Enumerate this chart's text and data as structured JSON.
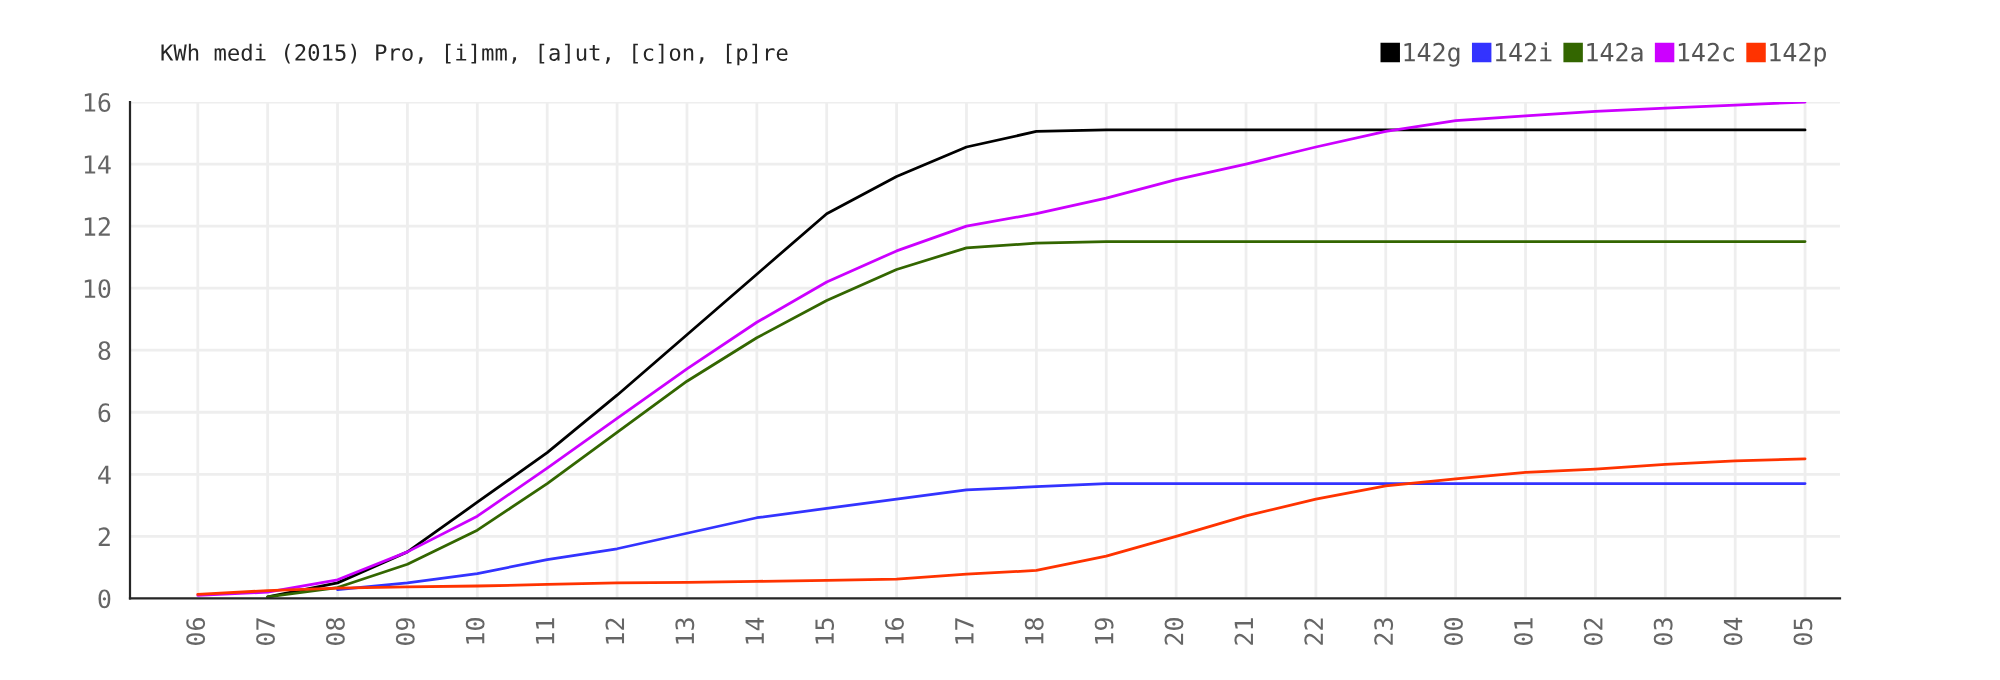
{
  "chart_data": {
    "type": "line",
    "title": "KWh medi (2015) Pro, [i]mm, [a]ut, [c]on, [p]re",
    "categories": [
      "06",
      "07",
      "08",
      "09",
      "10",
      "11",
      "12",
      "13",
      "14",
      "15",
      "16",
      "17",
      "18",
      "19",
      "20",
      "21",
      "22",
      "23",
      "00",
      "01",
      "02",
      "03",
      "04",
      "05"
    ],
    "ylim": [
      0,
      16
    ],
    "yticks": [
      0,
      2,
      4,
      6,
      8,
      10,
      12,
      14,
      16
    ],
    "grid": true,
    "legend": "top right",
    "marker": "none",
    "line_style": "solid",
    "series": [
      {
        "name": "142g",
        "color": "#000000",
        "values": [
          null,
          0.05,
          0.5,
          1.5,
          3.1,
          4.7,
          6.55,
          8.5,
          10.45,
          12.4,
          13.6,
          14.55,
          15.05,
          15.1,
          15.1,
          15.1,
          15.1,
          15.1,
          15.1,
          15.1,
          15.1,
          15.1,
          15.1,
          15.1
        ]
      },
      {
        "name": "142i",
        "color": "#3333ff",
        "values": [
          null,
          null,
          0.28,
          0.5,
          0.8,
          1.25,
          1.6,
          2.1,
          2.6,
          2.9,
          3.2,
          3.5,
          3.6,
          3.7,
          3.7,
          3.7,
          3.7,
          3.7,
          3.7,
          3.7,
          3.7,
          3.7,
          3.7,
          3.7
        ]
      },
      {
        "name": "142a",
        "color": "#336600",
        "values": [
          null,
          0.05,
          0.35,
          1.1,
          2.2,
          3.7,
          5.35,
          7.0,
          8.4,
          9.6,
          10.6,
          11.3,
          11.45,
          11.5,
          11.5,
          11.5,
          11.5,
          11.5,
          11.5,
          11.5,
          11.5,
          11.5,
          11.5,
          11.5
        ]
      },
      {
        "name": "142c",
        "color": "#cc00ff",
        "values": [
          0.1,
          0.2,
          0.6,
          1.5,
          2.65,
          4.2,
          5.8,
          7.4,
          8.9,
          10.2,
          11.2,
          12.0,
          12.4,
          12.9,
          13.5,
          14.0,
          14.55,
          15.05,
          15.4,
          15.55,
          15.7,
          15.8,
          15.9,
          16.0
        ]
      },
      {
        "name": "142p",
        "color": "#ff3300",
        "values": [
          0.13,
          0.25,
          0.33,
          0.37,
          0.4,
          0.45,
          0.5,
          0.52,
          0.55,
          0.58,
          0.62,
          0.78,
          0.9,
          1.36,
          2.0,
          2.66,
          3.2,
          3.63,
          3.85,
          4.06,
          4.17,
          4.32,
          4.43,
          4.5
        ]
      }
    ]
  }
}
